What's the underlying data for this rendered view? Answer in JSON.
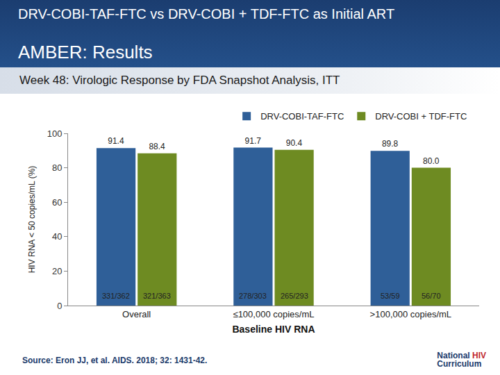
{
  "slide": {
    "heading": "DRV-COBI-TAF-FTC vs DRV-COBI + TDF-FTC as Initial ART",
    "subheading": "AMBER: Results",
    "source": "Source: Eron JJ, et al. AIDS. 2018; 32: 1431-42.",
    "logo": [
      "National",
      "HIV",
      "Curriculum"
    ]
  },
  "chart_data": {
    "type": "bar",
    "title": "Week 48: Virologic Response by FDA Snapshot Analysis, ITT",
    "x_label": "Baseline HIV RNA",
    "y_label": "HIV RNA < 50 copies/mL (%)",
    "categories": [
      "Overall",
      "≤100,000 copies/mL",
      ">100,000 copies/mL"
    ],
    "series": [
      {
        "name": "DRV-COBI-TAF-FTC",
        "color": "#2f5f98",
        "values": [
          91.4,
          91.7,
          89.8
        ],
        "value_labels": [
          "91.4",
          "91.7",
          "89.8"
        ],
        "counts": [
          "331/362",
          "278/303",
          "53/59"
        ]
      },
      {
        "name": "DRV-COBI + TDF-FTC",
        "color": "#6e8b22",
        "values": [
          88.4,
          90.4,
          80.0
        ],
        "value_labels": [
          "88.4",
          "90.4",
          "80.0"
        ],
        "counts": [
          "321/363",
          "265/293",
          "56/70"
        ]
      }
    ],
    "ylim": [
      0,
      100
    ],
    "yticks": [
      0,
      20,
      40,
      60,
      80,
      100
    ],
    "grid": false,
    "legend": "top",
    "data_labels": true
  }
}
